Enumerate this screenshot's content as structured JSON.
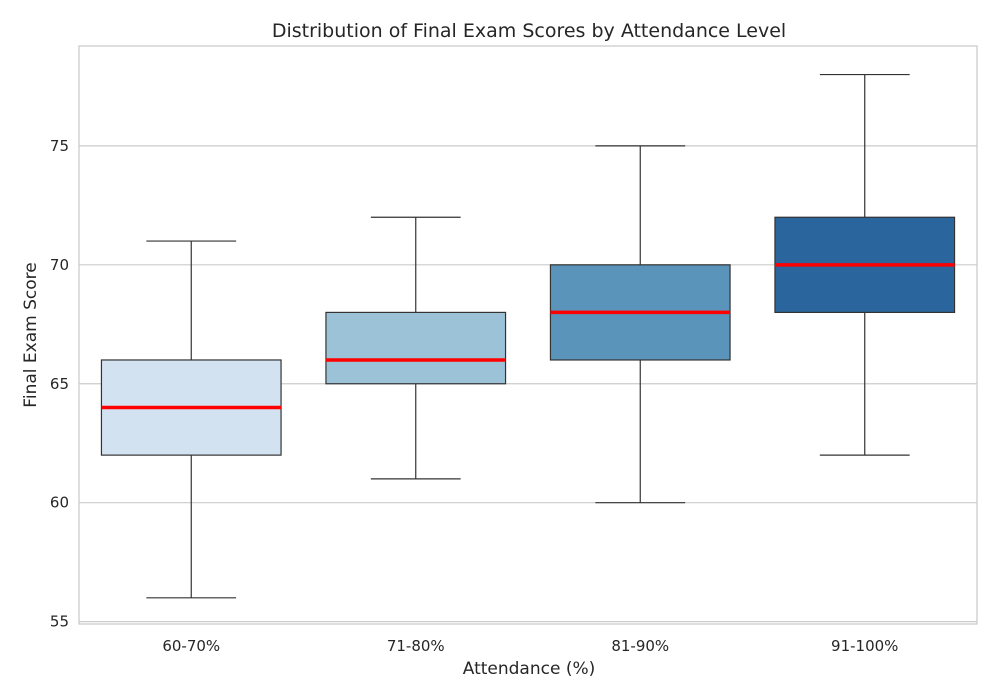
{
  "chart_data": {
    "type": "box",
    "title": "Distribution of Final Exam Scores by Attendance Level",
    "xlabel": "Attendance (%)",
    "ylabel": "Final Exam Score",
    "ylim": [
      54.9,
      79.2
    ],
    "yticks": [
      55,
      60,
      65,
      70,
      75
    ],
    "grid": true,
    "median_color": "#ff0000",
    "categories": [
      "60-70%",
      "71-80%",
      "81-90%",
      "91-100%"
    ],
    "boxes": [
      {
        "category": "60-70%",
        "min": 56,
        "q1": 62,
        "median": 64,
        "q3": 66,
        "max": 71,
        "color": "#d3e2f1"
      },
      {
        "category": "71-80%",
        "min": 61,
        "q1": 65,
        "median": 66,
        "q3": 68,
        "max": 72,
        "color": "#9cc2d7"
      },
      {
        "category": "81-90%",
        "min": 60,
        "q1": 66,
        "median": 68,
        "q3": 70,
        "max": 75,
        "color": "#5a94ba"
      },
      {
        "category": "91-100%",
        "min": 62,
        "q1": 68,
        "median": 70,
        "q3": 72,
        "max": 78,
        "color": "#2a669d"
      }
    ]
  }
}
